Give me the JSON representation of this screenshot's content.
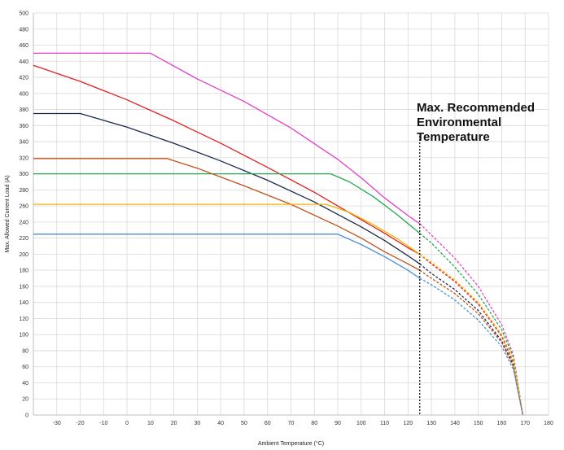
{
  "chart_data": {
    "type": "line",
    "title": "",
    "xlabel": "Ambient Temperature (°C)",
    "ylabel": "Max. Allowed Current Load (A)",
    "xlim": [
      -40,
      180
    ],
    "ylim": [
      0,
      500
    ],
    "x_ticks": [
      -30,
      -20,
      -10,
      0,
      10,
      20,
      30,
      40,
      50,
      60,
      70,
      80,
      90,
      100,
      110,
      120,
      130,
      140,
      150,
      160,
      170,
      180
    ],
    "y_ticks": [
      0,
      20,
      40,
      60,
      80,
      100,
      120,
      140,
      160,
      180,
      200,
      220,
      240,
      260,
      280,
      300,
      320,
      340,
      360,
      380,
      400,
      420,
      440,
      460,
      480,
      500
    ],
    "grid": true,
    "legend": "none",
    "annotation": {
      "lines": [
        "Max. Recommended",
        "Environmental",
        "Temperature"
      ],
      "x": 125
    },
    "series": [
      {
        "color": "#e23fc8",
        "values": [
          {
            "x": -40,
            "y": 450
          },
          {
            "x": 10,
            "y": 450
          },
          {
            "x": 30,
            "y": 418
          },
          {
            "x": 50,
            "y": 390
          },
          {
            "x": 70,
            "y": 357
          },
          {
            "x": 90,
            "y": 318
          },
          {
            "x": 100,
            "y": 295
          },
          {
            "x": 110,
            "y": 270
          },
          {
            "x": 120,
            "y": 248
          },
          {
            "x": 125,
            "y": 238
          },
          {
            "x": 130,
            "y": 224
          },
          {
            "x": 140,
            "y": 195
          },
          {
            "x": 150,
            "y": 160
          },
          {
            "x": 160,
            "y": 112
          },
          {
            "x": 165,
            "y": 75
          },
          {
            "x": 169,
            "y": 0
          }
        ]
      },
      {
        "color": "#e41e1e",
        "values": [
          {
            "x": -40,
            "y": 435
          },
          {
            "x": -20,
            "y": 415
          },
          {
            "x": 0,
            "y": 392
          },
          {
            "x": 20,
            "y": 366
          },
          {
            "x": 40,
            "y": 338
          },
          {
            "x": 60,
            "y": 308
          },
          {
            "x": 80,
            "y": 277
          },
          {
            "x": 100,
            "y": 243
          },
          {
            "x": 110,
            "y": 226
          },
          {
            "x": 120,
            "y": 208
          },
          {
            "x": 125,
            "y": 200
          },
          {
            "x": 130,
            "y": 188
          },
          {
            "x": 140,
            "y": 166
          },
          {
            "x": 150,
            "y": 138
          },
          {
            "x": 160,
            "y": 98
          },
          {
            "x": 165,
            "y": 65
          },
          {
            "x": 169,
            "y": 0
          }
        ]
      },
      {
        "color": "#1b2a4a",
        "values": [
          {
            "x": -40,
            "y": 375
          },
          {
            "x": -20,
            "y": 375
          },
          {
            "x": 0,
            "y": 358
          },
          {
            "x": 20,
            "y": 338
          },
          {
            "x": 40,
            "y": 316
          },
          {
            "x": 60,
            "y": 292
          },
          {
            "x": 80,
            "y": 265
          },
          {
            "x": 100,
            "y": 234
          },
          {
            "x": 110,
            "y": 217
          },
          {
            "x": 120,
            "y": 198
          },
          {
            "x": 125,
            "y": 188
          },
          {
            "x": 130,
            "y": 176
          },
          {
            "x": 140,
            "y": 156
          },
          {
            "x": 150,
            "y": 130
          },
          {
            "x": 160,
            "y": 92
          },
          {
            "x": 165,
            "y": 62
          },
          {
            "x": 169,
            "y": 0
          }
        ]
      },
      {
        "color": "#1faa4b",
        "values": [
          {
            "x": -40,
            "y": 300
          },
          {
            "x": 87,
            "y": 300
          },
          {
            "x": 95,
            "y": 290
          },
          {
            "x": 105,
            "y": 272
          },
          {
            "x": 115,
            "y": 250
          },
          {
            "x": 125,
            "y": 226
          },
          {
            "x": 130,
            "y": 214
          },
          {
            "x": 140,
            "y": 184
          },
          {
            "x": 150,
            "y": 150
          },
          {
            "x": 160,
            "y": 106
          },
          {
            "x": 165,
            "y": 72
          },
          {
            "x": 169,
            "y": 0
          }
        ]
      },
      {
        "color": "#c0501a",
        "values": [
          {
            "x": -40,
            "y": 319
          },
          {
            "x": 17,
            "y": 319
          },
          {
            "x": 30,
            "y": 307
          },
          {
            "x": 50,
            "y": 285
          },
          {
            "x": 70,
            "y": 262
          },
          {
            "x": 90,
            "y": 235
          },
          {
            "x": 100,
            "y": 220
          },
          {
            "x": 110,
            "y": 203
          },
          {
            "x": 120,
            "y": 188
          },
          {
            "x": 125,
            "y": 180
          },
          {
            "x": 130,
            "y": 170
          },
          {
            "x": 140,
            "y": 151
          },
          {
            "x": 150,
            "y": 126
          },
          {
            "x": 160,
            "y": 90
          },
          {
            "x": 165,
            "y": 60
          },
          {
            "x": 169,
            "y": 0
          }
        ]
      },
      {
        "color": "#f0b400",
        "values": [
          {
            "x": -40,
            "y": 262
          },
          {
            "x": 85,
            "y": 262
          },
          {
            "x": 95,
            "y": 252
          },
          {
            "x": 105,
            "y": 237
          },
          {
            "x": 115,
            "y": 220
          },
          {
            "x": 125,
            "y": 200
          },
          {
            "x": 130,
            "y": 190
          },
          {
            "x": 140,
            "y": 168
          },
          {
            "x": 150,
            "y": 140
          },
          {
            "x": 160,
            "y": 100
          },
          {
            "x": 165,
            "y": 68
          },
          {
            "x": 169,
            "y": 0
          }
        ]
      },
      {
        "color": "#4a8fd6",
        "values": [
          {
            "x": -40,
            "y": 225
          },
          {
            "x": 90,
            "y": 225
          },
          {
            "x": 100,
            "y": 212
          },
          {
            "x": 110,
            "y": 197
          },
          {
            "x": 120,
            "y": 180
          },
          {
            "x": 125,
            "y": 170
          },
          {
            "x": 130,
            "y": 162
          },
          {
            "x": 140,
            "y": 143
          },
          {
            "x": 150,
            "y": 118
          },
          {
            "x": 160,
            "y": 85
          },
          {
            "x": 165,
            "y": 57
          },
          {
            "x": 169,
            "y": 0
          }
        ]
      }
    ]
  }
}
